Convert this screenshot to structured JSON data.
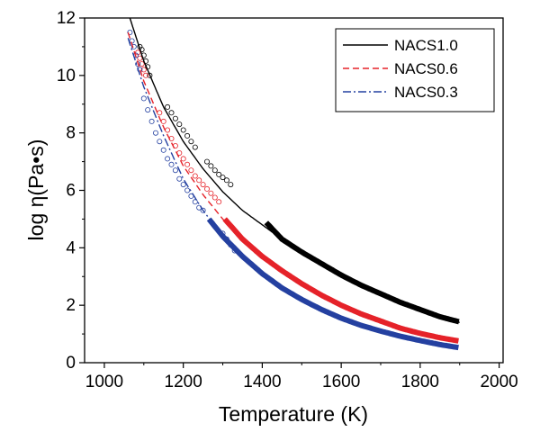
{
  "chart_data": {
    "type": "line",
    "xlabel": "Temperature (K)",
    "ylabel": "log η(Pa•s)",
    "xlim": [
      950,
      2010
    ],
    "ylim": [
      0,
      12
    ],
    "xticks": [
      1000,
      1200,
      1400,
      1600,
      1800,
      2000
    ],
    "yticks": [
      0,
      2,
      4,
      6,
      8,
      10,
      12
    ],
    "grid": false,
    "legend_position": "top-right",
    "series": [
      {
        "name": "NACS1.0",
        "color": "#000000",
        "dash": "solid",
        "curve": {
          "x": [
            1060,
            1100,
            1150,
            1200,
            1250,
            1300,
            1350,
            1400,
            1450,
            1500,
            1550,
            1600,
            1650,
            1700,
            1750,
            1800,
            1850,
            1900
          ],
          "y": [
            12.2,
            10.5,
            8.9,
            7.7,
            6.75,
            5.95,
            5.3,
            4.8,
            4.3,
            3.85,
            3.45,
            3.05,
            2.7,
            2.4,
            2.1,
            1.85,
            1.6,
            1.4
          ]
        },
        "high_t_data": {
          "x": [
            1410,
            1450,
            1500,
            1550,
            1600,
            1650,
            1700,
            1750,
            1800,
            1850,
            1900
          ],
          "y": [
            4.88,
            4.3,
            3.85,
            3.45,
            3.05,
            2.7,
            2.4,
            2.1,
            1.85,
            1.6,
            1.42
          ]
        },
        "low_t_points": {
          "x": [
            1090,
            1095,
            1100,
            1105,
            1110,
            1115,
            1160,
            1170,
            1180,
            1190,
            1200,
            1210,
            1220,
            1230,
            1260,
            1270,
            1280,
            1290,
            1300,
            1310,
            1320
          ],
          "y": [
            11.0,
            10.9,
            10.7,
            10.5,
            10.3,
            10.0,
            8.9,
            8.7,
            8.5,
            8.3,
            8.1,
            7.9,
            7.7,
            7.5,
            7.0,
            6.85,
            6.7,
            6.55,
            6.45,
            6.35,
            6.2
          ]
        }
      },
      {
        "name": "NACS0.6",
        "color": "#e52229",
        "dash": "dash",
        "curve": {
          "x": [
            1060,
            1100,
            1150,
            1200,
            1250,
            1300,
            1350,
            1400,
            1450,
            1500,
            1550,
            1600,
            1650,
            1700,
            1750,
            1800,
            1850,
            1900
          ],
          "y": [
            11.5,
            9.8,
            8.2,
            6.85,
            5.85,
            5.0,
            4.3,
            3.7,
            3.2,
            2.75,
            2.35,
            2.0,
            1.7,
            1.45,
            1.2,
            1.02,
            0.87,
            0.75
          ]
        },
        "high_t_data": {
          "x": [
            1305,
            1350,
            1400,
            1450,
            1500,
            1550,
            1600,
            1650,
            1700,
            1750,
            1800,
            1850,
            1900
          ],
          "y": [
            5.0,
            4.3,
            3.7,
            3.2,
            2.75,
            2.35,
            2.0,
            1.7,
            1.45,
            1.2,
            1.02,
            0.87,
            0.75
          ]
        },
        "low_t_points": {
          "x": [
            1085,
            1090,
            1095,
            1100,
            1105,
            1140,
            1150,
            1160,
            1170,
            1180,
            1190,
            1200,
            1210,
            1220,
            1230,
            1240,
            1250,
            1260,
            1270,
            1280,
            1290
          ],
          "y": [
            10.8,
            10.6,
            10.4,
            10.2,
            10.0,
            8.7,
            8.4,
            8.1,
            7.8,
            7.55,
            7.3,
            7.1,
            6.9,
            6.7,
            6.5,
            6.35,
            6.2,
            6.05,
            5.9,
            5.75,
            5.6
          ]
        }
      },
      {
        "name": "NACS0.3",
        "color": "#2440a0",
        "dash": "dashdot",
        "curve": {
          "x": [
            1060,
            1100,
            1150,
            1200,
            1250,
            1300,
            1350,
            1400,
            1450,
            1500,
            1550,
            1600,
            1650,
            1700,
            1750,
            1800,
            1850,
            1900
          ],
          "y": [
            11.3,
            9.6,
            7.9,
            6.4,
            5.3,
            4.4,
            3.7,
            3.1,
            2.6,
            2.2,
            1.85,
            1.55,
            1.3,
            1.1,
            0.92,
            0.77,
            0.63,
            0.52
          ]
        },
        "high_t_data": {
          "x": [
            1265,
            1300,
            1350,
            1400,
            1450,
            1500,
            1550,
            1600,
            1650,
            1700,
            1750,
            1800,
            1850,
            1900
          ],
          "y": [
            5.0,
            4.4,
            3.7,
            3.1,
            2.6,
            2.2,
            1.85,
            1.55,
            1.3,
            1.1,
            0.92,
            0.77,
            0.63,
            0.52
          ]
        },
        "low_t_points": {
          "x": [
            1065,
            1070,
            1075,
            1080,
            1085,
            1090,
            1100,
            1110,
            1120,
            1130,
            1140,
            1150,
            1160,
            1170,
            1180,
            1190,
            1200,
            1210,
            1220,
            1230,
            1240,
            1250,
            1300,
            1310,
            1320,
            1330
          ],
          "y": [
            11.5,
            11.2,
            11.0,
            10.7,
            10.4,
            10.2,
            9.2,
            8.8,
            8.4,
            8.0,
            7.7,
            7.4,
            7.1,
            6.9,
            6.7,
            6.4,
            6.2,
            6.0,
            5.8,
            5.6,
            5.4,
            5.3,
            4.5,
            4.3,
            4.1,
            3.9
          ]
        }
      }
    ]
  }
}
